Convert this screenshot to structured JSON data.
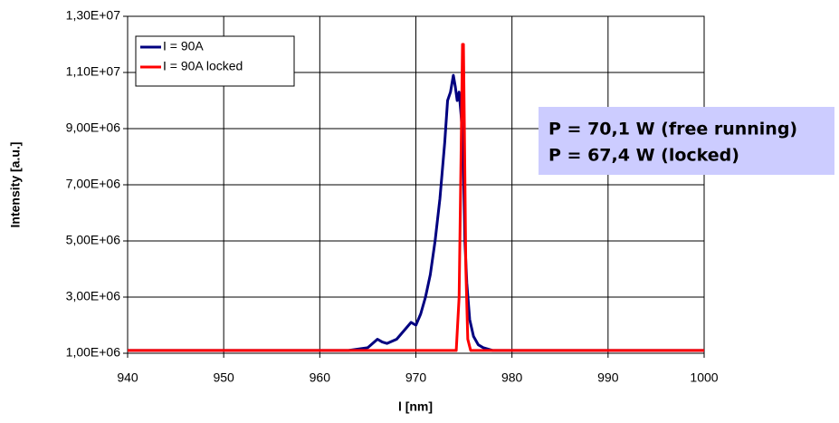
{
  "chart_data": {
    "type": "line",
    "x_label": "l [nm]",
    "y_label": "Intensity [a.u.]",
    "annotations": [
      "P = 70,1 W (free running)",
      "P = 67,4 W (locked)"
    ],
    "xlim": [
      940,
      1000
    ],
    "xticks": [
      940,
      950,
      960,
      970,
      980,
      990,
      1000
    ],
    "ylim": [
      1000000,
      13000000
    ],
    "yticks": [
      {
        "value": 1000000,
        "label": "1,00E+06"
      },
      {
        "value": 3000000,
        "label": "3,00E+06"
      },
      {
        "value": 5000000,
        "label": "5,00E+06"
      },
      {
        "value": 7000000,
        "label": "7,00E+06"
      },
      {
        "value": 9000000,
        "label": "9,00E+06"
      },
      {
        "value": 11000000,
        "label": "1,10E+07"
      },
      {
        "value": 13000000,
        "label": "1,30E+07"
      }
    ],
    "grid": true,
    "legend": "upper left",
    "series": [
      {
        "name": "I = 90A",
        "color": "#000080",
        "x": [
          940,
          945,
          950,
          955,
          960,
          963,
          965,
          966,
          966.5,
          967,
          968,
          969,
          969.5,
          970,
          970.5,
          971,
          971.5,
          972,
          972.5,
          973,
          973.3,
          973.6,
          973.9,
          974.1,
          974.3,
          974.5,
          974.7,
          974.9,
          975.1,
          975.3,
          975.6,
          976,
          976.5,
          977,
          978,
          980,
          990,
          1000
        ],
        "values": [
          1100000,
          1100000,
          1100000,
          1100000,
          1100000,
          1100000,
          1200000,
          1500000,
          1400000,
          1350000,
          1500000,
          1900000,
          2100000,
          2000000,
          2400000,
          3000000,
          3800000,
          5000000,
          6500000,
          8500000,
          10000000,
          10300000,
          10900000,
          10500000,
          10000000,
          10300000,
          9500000,
          8500000,
          5000000,
          3500000,
          2200000,
          1600000,
          1300000,
          1200000,
          1100000,
          1100000,
          1100000,
          1100000
        ]
      },
      {
        "name": "I = 90A locked",
        "color": "#ff0000",
        "x": [
          940,
          960,
          974.2,
          974.5,
          974.7,
          974.85,
          974.95,
          975.05,
          975.2,
          975.4,
          975.7,
          990,
          1000
        ],
        "values": [
          1100000,
          1100000,
          1100000,
          3000000,
          8000000,
          12000000,
          12000000,
          9000000,
          4000000,
          1500000,
          1100000,
          1100000,
          1100000
        ]
      }
    ]
  }
}
